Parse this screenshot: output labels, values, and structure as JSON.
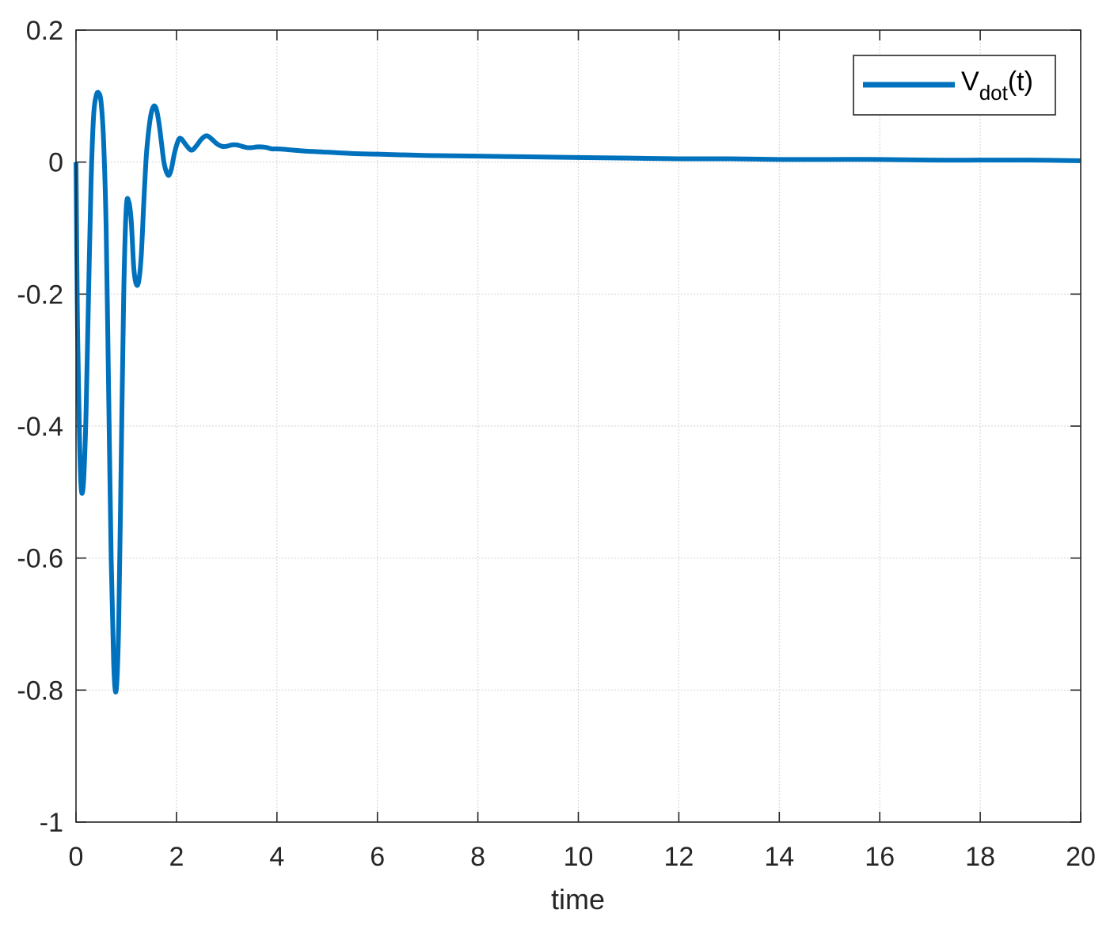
{
  "chart_data": {
    "type": "line",
    "title": "",
    "xlabel": "time",
    "ylabel": "",
    "xlim": [
      0,
      20
    ],
    "ylim": [
      -1,
      0.2
    ],
    "xticks": [
      0,
      2,
      4,
      6,
      8,
      10,
      12,
      14,
      16,
      18,
      20
    ],
    "yticks": [
      -1,
      -0.8,
      -0.6,
      -0.4,
      -0.2,
      0,
      0.2
    ],
    "grid": true,
    "legend_position": "top-right",
    "legend": {
      "main": "V",
      "sub": "dot",
      "suffix": "(t)"
    },
    "series_color": "#0072BD",
    "series": [
      {
        "name": "V_dot(t)",
        "x": [
          0,
          0.03,
          0.07,
          0.1,
          0.13,
          0.16,
          0.2,
          0.25,
          0.3,
          0.35,
          0.4,
          0.45,
          0.5,
          0.55,
          0.6,
          0.65,
          0.7,
          0.75,
          0.8,
          0.85,
          0.9,
          0.95,
          1.0,
          1.05,
          1.1,
          1.15,
          1.2,
          1.25,
          1.3,
          1.35,
          1.4,
          1.45,
          1.5,
          1.55,
          1.6,
          1.65,
          1.7,
          1.75,
          1.8,
          1.85,
          1.9,
          1.95,
          2.0,
          2.05,
          2.1,
          2.2,
          2.3,
          2.4,
          2.5,
          2.6,
          2.7,
          2.8,
          2.9,
          3.0,
          3.1,
          3.2,
          3.3,
          3.4,
          3.5,
          3.6,
          3.7,
          3.8,
          3.9,
          4.0,
          4.2,
          4.5,
          5.0,
          5.5,
          6.0,
          7.0,
          8.0,
          9.0,
          10.0,
          11.0,
          12.0,
          13.0,
          14.0,
          15.0,
          16.0,
          17.0,
          18.0,
          19.0,
          20.0
        ],
        "y": [
          0,
          -0.25,
          -0.42,
          -0.49,
          -0.5,
          -0.47,
          -0.38,
          -0.2,
          -0.03,
          0.07,
          0.1,
          0.105,
          0.09,
          0.03,
          -0.1,
          -0.35,
          -0.6,
          -0.76,
          -0.8,
          -0.7,
          -0.45,
          -0.2,
          -0.07,
          -0.06,
          -0.09,
          -0.16,
          -0.185,
          -0.18,
          -0.14,
          -0.06,
          0.01,
          0.05,
          0.075,
          0.085,
          0.08,
          0.06,
          0.03,
          0.0,
          -0.015,
          -0.02,
          -0.01,
          0.01,
          0.025,
          0.035,
          0.035,
          0.025,
          0.018,
          0.025,
          0.035,
          0.04,
          0.035,
          0.028,
          0.024,
          0.024,
          0.026,
          0.026,
          0.024,
          0.022,
          0.022,
          0.023,
          0.023,
          0.022,
          0.02,
          0.02,
          0.019,
          0.017,
          0.015,
          0.013,
          0.012,
          0.01,
          0.009,
          0.008,
          0.007,
          0.006,
          0.005,
          0.005,
          0.004,
          0.004,
          0.004,
          0.003,
          0.003,
          0.003,
          0.002
        ]
      }
    ]
  }
}
